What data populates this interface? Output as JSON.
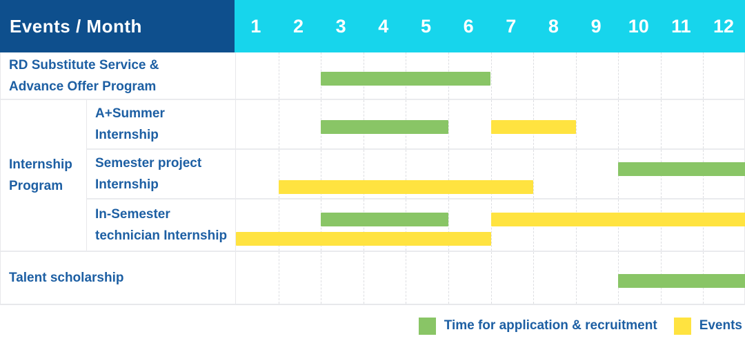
{
  "header": {
    "title": "Events / Month",
    "months": [
      "1",
      "2",
      "3",
      "4",
      "5",
      "6",
      "7",
      "8",
      "9",
      "10",
      "11",
      "12"
    ]
  },
  "colors": {
    "header_bg": "#0e4f8d",
    "months_bg": "#17d5ec",
    "label_text": "#1d5fa3",
    "application_green": "#89c566",
    "events_yellow": "#ffe340"
  },
  "chart_data": {
    "type": "gantt",
    "variant": "bar",
    "unit": "month",
    "x_range": [
      1,
      12
    ],
    "grid": "dashed-vertical-per-month",
    "legend_position": "bottom-right",
    "group": {
      "label": "Internship\nProgram",
      "covers_rows": [
        2,
        3,
        4
      ]
    },
    "rows": [
      {
        "label": "RD Substitute Service &\nAdvance Offer Program",
        "in_group": false,
        "bars": [
          {
            "color": "green",
            "start_month": 3,
            "end_month": 6,
            "lane": "center"
          }
        ]
      },
      {
        "label": "A+Summer\nInternship",
        "in_group": true,
        "bars": [
          {
            "color": "green",
            "start_month": 3,
            "end_month": 5,
            "lane": "center"
          },
          {
            "color": "yellow",
            "start_month": 7,
            "end_month": 8,
            "lane": "center"
          }
        ]
      },
      {
        "label": "Semester project\nInternship",
        "in_group": true,
        "bars": [
          {
            "color": "green",
            "start_month": 10,
            "end_month": 12,
            "lane": "top"
          },
          {
            "color": "yellow",
            "start_month": 2,
            "end_month": 7,
            "lane": "bottom"
          }
        ]
      },
      {
        "label": "In-Semester\ntechnician Internship",
        "in_group": true,
        "bars": [
          {
            "color": "green",
            "start_month": 3,
            "end_month": 5,
            "lane": "top"
          },
          {
            "color": "yellow",
            "start_month": 7,
            "end_month": 12,
            "lane": "top"
          },
          {
            "color": "yellow",
            "start_month": 1,
            "end_month": 6,
            "lane": "bottom"
          }
        ]
      },
      {
        "label": "Talent scholarship",
        "in_group": false,
        "bars": [
          {
            "color": "green",
            "start_month": 10,
            "end_month": 12,
            "lane": "center"
          }
        ]
      }
    ]
  },
  "legend": {
    "application_label": "Time for application & recruitment",
    "events_label": "Events"
  }
}
